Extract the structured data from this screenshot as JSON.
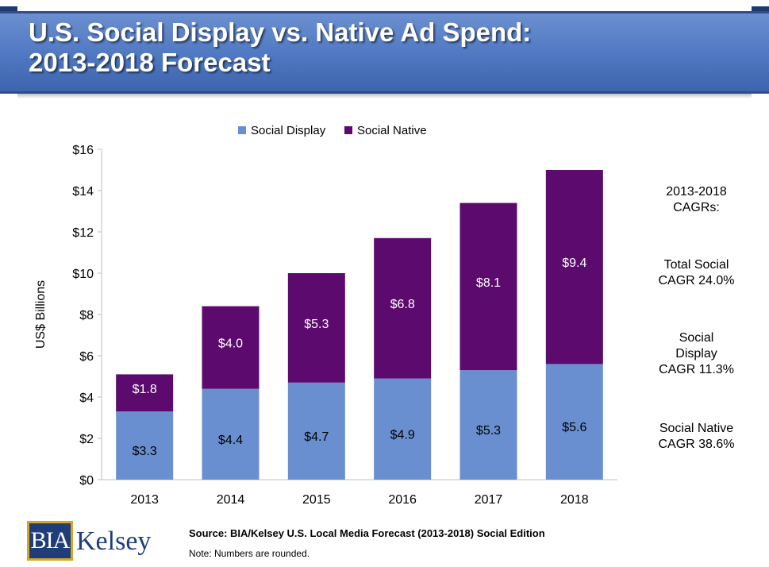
{
  "header": {
    "title_line1": "U.S. Social Display vs. Native Ad Spend:",
    "title_line2": "2013-2018 Forecast"
  },
  "chart_data": {
    "type": "bar",
    "stacked": true,
    "categories": [
      "2013",
      "2014",
      "2015",
      "2016",
      "2017",
      "2018"
    ],
    "series": [
      {
        "name": "Social Display",
        "color": "#6a8fd0",
        "values": [
          3.3,
          4.4,
          4.7,
          4.9,
          5.3,
          5.6
        ],
        "labels": [
          "$3.3",
          "$4.4",
          "$4.7",
          "$4.9",
          "$5.3",
          "$5.6"
        ]
      },
      {
        "name": "Social Native",
        "color": "#5c0a6e",
        "values": [
          1.8,
          4.0,
          5.3,
          6.8,
          8.1,
          9.4
        ],
        "labels": [
          "$1.8",
          "$4.0",
          "$5.3",
          "$6.8",
          "$8.1",
          "$9.4"
        ]
      }
    ],
    "ylabel": "US$ Billions",
    "ylim": [
      0,
      16
    ],
    "yticks": [
      0,
      2,
      4,
      6,
      8,
      10,
      12,
      14,
      16
    ],
    "ytick_labels": [
      "$0",
      "$2",
      "$4",
      "$6",
      "$8",
      "$10",
      "$12",
      "$14",
      "$16"
    ],
    "grid": false,
    "legend": "top-center"
  },
  "cagr": {
    "heading_line1": "2013-2018",
    "heading_line2": "CAGRs:",
    "total_line1": "Total Social",
    "total_line2": "CAGR 24.0%",
    "display_line1": "Social",
    "display_line2": "Display",
    "display_line3": "CAGR 11.3%",
    "native_line1": "Social Native",
    "native_line2": "CAGR 38.6%"
  },
  "footer": {
    "source": "Source: BIA/Kelsey U.S. Local Media Forecast (2013-2018) Social Edition",
    "note": "Note: Numbers are rounded."
  },
  "logo": {
    "mark": "BIA",
    "word": "Kelsey"
  }
}
